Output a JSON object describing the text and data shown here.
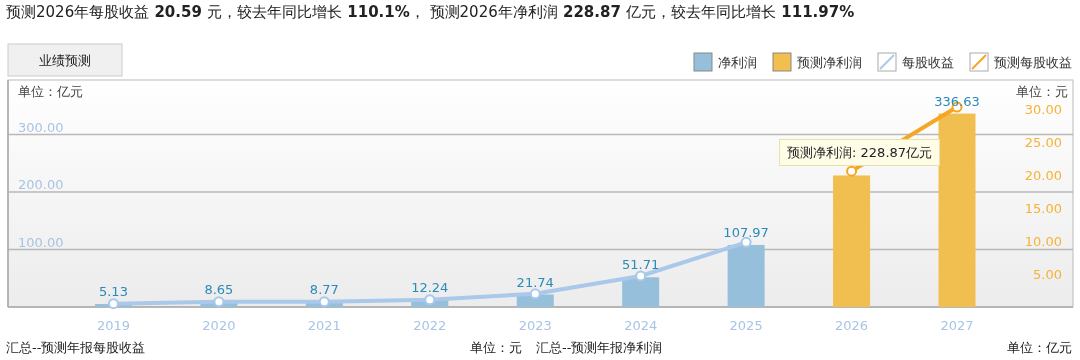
{
  "chart_data": {
    "type": "bar",
    "title": "预测2026年每股收益 20.59 元，较去年同比增长 110.1%， 预测2026年净利润 228.87 亿元，较去年同比增长 111.97%",
    "ylabel": "单位：亿元",
    "y2label": "单位：元",
    "categories": [
      "2019",
      "2020",
      "2021",
      "2022",
      "2023",
      "2024",
      "2025",
      "2026",
      "2027"
    ],
    "series": [
      {
        "name": "净利润",
        "color": "#96bfdc",
        "values": [
          5.13,
          8.65,
          8.77,
          12.24,
          21.74,
          51.71,
          107.97,
          null,
          null
        ],
        "value_labels": [
          "5.13",
          "8.65",
          "8.77",
          "12.24",
          "21.74",
          "51.71",
          "107.97",
          null,
          null
        ]
      },
      {
        "name": "预测净利润",
        "color": "#f0bf50",
        "values": [
          null,
          null,
          null,
          null,
          null,
          null,
          null,
          228.87,
          336.63
        ],
        "value_labels": [
          null,
          null,
          null,
          null,
          null,
          null,
          null,
          null,
          "336.63"
        ]
      },
      {
        "name": "每股收益",
        "type": "line",
        "axis": "y2",
        "color": "#a9c8ea",
        "values": [
          0.5,
          0.8,
          0.8,
          1.1,
          2.0,
          4.7,
          9.8,
          null,
          null
        ]
      },
      {
        "name": "预测每股收益",
        "type": "line",
        "axis": "y2",
        "color": "#f5a623",
        "values": [
          null,
          null,
          null,
          null,
          null,
          null,
          null,
          20.59,
          30.3
        ]
      }
    ],
    "ylim": [
      0,
      395
    ],
    "yticks": [
      {
        "value": 100,
        "label": "100.00"
      },
      {
        "value": 200,
        "label": "200.00"
      },
      {
        "value": 300,
        "label": "300.00"
      }
    ],
    "y2lim": [
      0,
      34.4
    ],
    "y2ticks": [
      {
        "value": 5,
        "label": "5.00"
      },
      {
        "value": 10,
        "label": "10.00"
      },
      {
        "value": 15,
        "label": "15.00"
      },
      {
        "value": 20,
        "label": "20.00"
      },
      {
        "value": 25,
        "label": "25.00"
      },
      {
        "value": 30,
        "label": "30.00"
      }
    ],
    "grid": "y",
    "legend": "top right",
    "marker": "circle",
    "annotations": [
      "业绩预测",
      {
        "text": "预测净利润: 228.87亿元",
        "x": "2026",
        "y": 228.87
      },
      "汇总--预测年报每股收益",
      "单位：元",
      "汇总--预测年报净利润",
      "单位：亿元"
    ]
  }
}
